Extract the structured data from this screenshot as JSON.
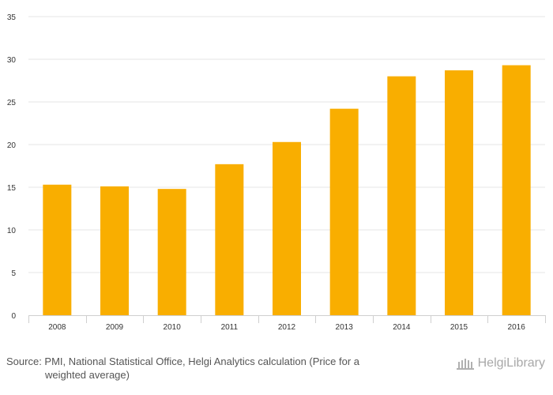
{
  "chart_data": {
    "type": "bar",
    "categories": [
      "2008",
      "2009",
      "2010",
      "2011",
      "2012",
      "2013",
      "2014",
      "2015",
      "2016"
    ],
    "values": [
      15.3,
      15.1,
      14.8,
      17.7,
      20.3,
      24.2,
      28.0,
      28.7,
      29.3
    ],
    "ylim": [
      0,
      35
    ],
    "yticks": [
      0,
      5,
      10,
      15,
      20,
      25,
      30,
      35
    ],
    "grid": true,
    "bar_color": "#f9ae00",
    "title": "",
    "xlabel": "",
    "ylabel": ""
  },
  "footer": {
    "source_line1": "Source: PMI, National Statistical Office, Helgi Analytics calculation (Price for a",
    "source_line2": "weighted average)"
  },
  "logo": {
    "text": "HelgiLibrary",
    "icon": "library-building-icon"
  }
}
